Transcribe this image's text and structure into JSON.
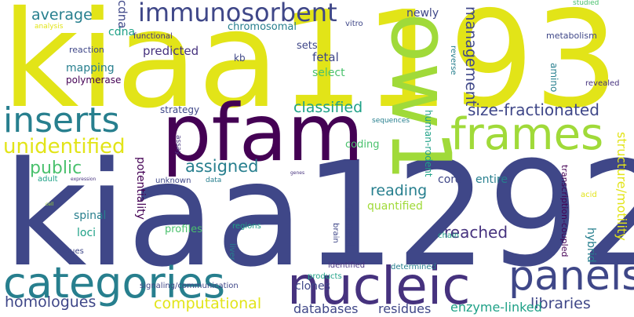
{
  "colors": {
    "background": "#ffffff",
    "navy": "#3f4788",
    "indigo": "#46327e",
    "teal": "#277f8e",
    "green": "#4ac16d",
    "lime": "#a0da39",
    "yellow": "#e2e418",
    "sea": "#1fa187",
    "darkpurple": "#440154"
  },
  "words": {
    "kiaa1292": "kiaa1292",
    "kiaa1193": "kiaa1193",
    "pfam": "pfam",
    "ow1": "ow1",
    "nucleic": "nucleic",
    "categories": "categories",
    "panels": "panels",
    "frames": "frames",
    "inserts": "inserts",
    "immunosorbent": "immunosorbent",
    "unidentified": "unidentified",
    "assigned": "assigned",
    "public": "public",
    "average": "average",
    "classified": "classified",
    "size_fractionated": "size-fractionated",
    "management": "management",
    "reading": "reading",
    "reached": "reached",
    "homologues": "homologues",
    "computational": "computational",
    "libraries": "libraries",
    "databases": "databases",
    "residues": "residues",
    "enzyme_linked": "enzyme-linked",
    "structure_motility": "structure/motility",
    "chromosomal": "chromosomal",
    "newly": "newly",
    "cdna": "cdna",
    "predicted": "predicted",
    "mapping": "mapping",
    "polymerase": "polymerase",
    "reaction": "reaction",
    "functional": "functional",
    "kb": "kb",
    "fetal": "fetal",
    "sets": "sets",
    "select": "select",
    "strategy": "strategy",
    "coding": "coding",
    "entire": "entire",
    "cord": "cord",
    "quantified": "quantified",
    "named": "named",
    "spinal": "spinal",
    "loci": "loci",
    "profiles": "profiles",
    "potentiality": "potentiality",
    "unknown": "unknown",
    "hybrid": "hybrid",
    "human_rodent": "human-rodent",
    "transcription_coupled": "transcription-coupled",
    "clones": "clones",
    "signaling_communication": "signaling/communication",
    "products": "products",
    "identified": "identified",
    "determined": "determined",
    "regions": "regions",
    "liver": "liver",
    "brain": "brain",
    "tissues": "tissues",
    "chain": "chain",
    "acid": "acid",
    "amino": "amino",
    "metabolism": "metabolism",
    "revealed": "revealed",
    "reverse": "reverse",
    "vitro": "vitro",
    "studied": "studied",
    "analysis": "analysis",
    "sequences": "sequences",
    "assay": "assay",
    "adult": "adult",
    "expression": "expression",
    "data": "data",
    "genes": "genes",
    "cell": "cell"
  }
}
